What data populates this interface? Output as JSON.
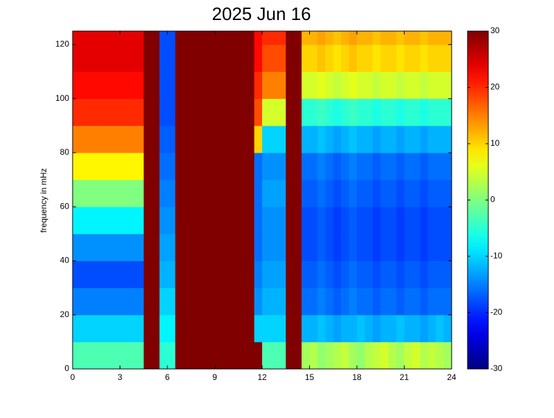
{
  "chart_data": {
    "type": "heatmap",
    "title": "2025 Jun 16",
    "y_label": "frequency in mHz",
    "colormap": "jet",
    "xbins": [
      0,
      0.5,
      1,
      1.5,
      2,
      2.5,
      3,
      3.5,
      4,
      4.5,
      5,
      5.5,
      6,
      6.5,
      7,
      7.5,
      8,
      8.5,
      9,
      9.5,
      10,
      10.5,
      11,
      11.5,
      12,
      12.5,
      13,
      13.5,
      14,
      14.5,
      15,
      15.5,
      16,
      16.5,
      17,
      17.5,
      18,
      18.5,
      19,
      19.5,
      20,
      20.5,
      21,
      21.5,
      22,
      22.5,
      23,
      23.5,
      24
    ],
    "ybins": [
      0,
      10,
      20,
      30,
      40,
      50,
      60,
      70,
      80,
      90,
      100,
      110,
      120,
      125
    ],
    "xlim": [
      0,
      24
    ],
    "xticks": [
      0,
      3,
      6,
      9,
      12,
      15,
      18,
      21,
      24
    ],
    "ylim": [
      0,
      125
    ],
    "yticks": [
      0,
      20,
      40,
      60,
      80,
      100,
      120
    ],
    "clim": [
      -30,
      30
    ],
    "cticks": [
      -30,
      -20,
      -10,
      0,
      10,
      20,
      30
    ],
    "values": [
      [
        -3,
        -3,
        -3,
        -3,
        -3,
        -3,
        -3,
        -3,
        -3,
        30,
        30,
        -5,
        -5,
        30,
        30,
        30,
        30,
        30,
        30,
        30,
        30,
        30,
        30,
        30,
        -3,
        -3,
        -3,
        30,
        30,
        2,
        3,
        1,
        2,
        3,
        4,
        2,
        1,
        3,
        4,
        5,
        3,
        2,
        4,
        5,
        3,
        4,
        3,
        2
      ],
      [
        -10,
        -10,
        -10,
        -10,
        -10,
        -10,
        -10,
        -10,
        -10,
        30,
        30,
        -8,
        -8,
        30,
        30,
        30,
        30,
        30,
        30,
        30,
        30,
        30,
        30,
        -10,
        -10,
        -10,
        -10,
        30,
        30,
        -12,
        -12,
        -11,
        -12,
        -13,
        -12,
        -12,
        -11,
        -12,
        -13,
        -12,
        -12,
        -11,
        -12,
        -12,
        -13,
        -12,
        -11,
        -12
      ],
      [
        -15,
        -15,
        -15,
        -15,
        -15,
        -15,
        -15,
        -15,
        -15,
        30,
        30,
        -10,
        -10,
        30,
        30,
        30,
        30,
        30,
        30,
        30,
        30,
        30,
        30,
        -14,
        -12,
        -12,
        -12,
        30,
        30,
        -16,
        -16,
        -15,
        -16,
        -17,
        -16,
        -15,
        -16,
        -16,
        -17,
        -16,
        -16,
        -17,
        -16,
        -16,
        -17,
        -16,
        -16,
        -16
      ],
      [
        -18,
        -18,
        -18,
        -18,
        -18,
        -18,
        -18,
        -18,
        -18,
        30,
        30,
        -12,
        -12,
        30,
        30,
        30,
        30,
        30,
        30,
        30,
        30,
        30,
        30,
        -15,
        -13,
        -13,
        -13,
        30,
        30,
        -17,
        -17,
        -16,
        -17,
        -18,
        -17,
        -16,
        -17,
        -17,
        -18,
        -17,
        -17,
        -18,
        -17,
        -17,
        -18,
        -17,
        -17,
        -17
      ],
      [
        -14,
        -14,
        -14,
        -14,
        -14,
        -14,
        -14,
        -14,
        -14,
        30,
        30,
        -13,
        -13,
        30,
        30,
        30,
        30,
        30,
        30,
        30,
        30,
        30,
        30,
        -16,
        -14,
        -14,
        -14,
        30,
        30,
        -18,
        -18,
        -17,
        -18,
        -19,
        -18,
        -17,
        -18,
        -18,
        -19,
        -18,
        -18,
        -19,
        -18,
        -18,
        -19,
        -18,
        -18,
        -18
      ],
      [
        -8,
        -8,
        -8,
        -8,
        -8,
        -8,
        -8,
        -8,
        -8,
        30,
        30,
        -14,
        -14,
        30,
        30,
        30,
        30,
        30,
        30,
        30,
        30,
        30,
        30,
        -16,
        -14,
        -14,
        -14,
        30,
        30,
        -18,
        -18,
        -17,
        -18,
        -19,
        -18,
        -17,
        -18,
        -18,
        -19,
        -18,
        -18,
        -19,
        -18,
        -18,
        -19,
        -18,
        -18,
        -18
      ],
      [
        0,
        0,
        0,
        0,
        0,
        0,
        0,
        0,
        0,
        30,
        30,
        -15,
        -15,
        30,
        30,
        30,
        30,
        30,
        30,
        30,
        30,
        30,
        30,
        -16,
        -13,
        -13,
        -13,
        30,
        30,
        -17,
        -17,
        -16,
        -17,
        -18,
        -17,
        -16,
        -17,
        -17,
        -18,
        -17,
        -17,
        -18,
        -17,
        -17,
        -18,
        -17,
        -17,
        -17
      ],
      [
        8,
        8,
        8,
        8,
        8,
        8,
        8,
        8,
        8,
        30,
        30,
        -16,
        -16,
        30,
        30,
        30,
        30,
        30,
        30,
        30,
        30,
        30,
        30,
        -16,
        -14,
        -14,
        -14,
        30,
        30,
        -16,
        -16,
        -15,
        -16,
        -17,
        -16,
        -15,
        -16,
        -16,
        -17,
        -16,
        -16,
        -17,
        -16,
        -16,
        -17,
        -16,
        -16,
        -16
      ],
      [
        15,
        15,
        15,
        15,
        15,
        15,
        15,
        15,
        15,
        30,
        30,
        -17,
        -17,
        30,
        30,
        30,
        30,
        30,
        30,
        30,
        30,
        30,
        30,
        10,
        -10,
        -10,
        -10,
        30,
        30,
        -12,
        -12,
        -11,
        -12,
        -13,
        -12,
        -11,
        -12,
        -12,
        -13,
        -12,
        -12,
        -13,
        -12,
        -12,
        -13,
        -12,
        -12,
        -12
      ],
      [
        20,
        20,
        20,
        20,
        20,
        20,
        20,
        20,
        20,
        30,
        30,
        -18,
        -18,
        30,
        30,
        30,
        30,
        30,
        30,
        30,
        30,
        30,
        30,
        18,
        5,
        5,
        5,
        30,
        30,
        -5,
        -5,
        -4,
        -5,
        -6,
        -5,
        -4,
        -5,
        -5,
        -6,
        -5,
        -5,
        -6,
        -5,
        -5,
        -6,
        -5,
        -5,
        -5
      ],
      [
        22,
        22,
        22,
        22,
        22,
        22,
        22,
        22,
        22,
        30,
        30,
        -18,
        -18,
        30,
        30,
        30,
        30,
        30,
        30,
        30,
        30,
        30,
        30,
        20,
        15,
        15,
        15,
        30,
        30,
        5,
        5,
        6,
        5,
        4,
        5,
        6,
        5,
        5,
        4,
        5,
        5,
        4,
        5,
        5,
        4,
        5,
        5,
        5
      ],
      [
        24,
        24,
        24,
        24,
        24,
        24,
        24,
        24,
        24,
        30,
        30,
        -18,
        -18,
        30,
        30,
        30,
        30,
        30,
        30,
        30,
        30,
        30,
        30,
        22,
        18,
        18,
        18,
        30,
        30,
        10,
        10,
        11,
        10,
        9,
        10,
        11,
        10,
        10,
        9,
        10,
        10,
        9,
        10,
        10,
        9,
        10,
        10,
        10
      ],
      [
        24,
        24,
        24,
        24,
        24,
        24,
        24,
        24,
        24,
        30,
        30,
        -18,
        -18,
        30,
        30,
        30,
        30,
        30,
        30,
        30,
        30,
        30,
        30,
        22,
        20,
        20,
        20,
        30,
        30,
        12,
        12,
        13,
        12,
        11,
        12,
        13,
        12,
        12,
        11,
        12,
        12,
        11,
        12,
        12,
        11,
        12,
        12,
        12
      ]
    ]
  }
}
